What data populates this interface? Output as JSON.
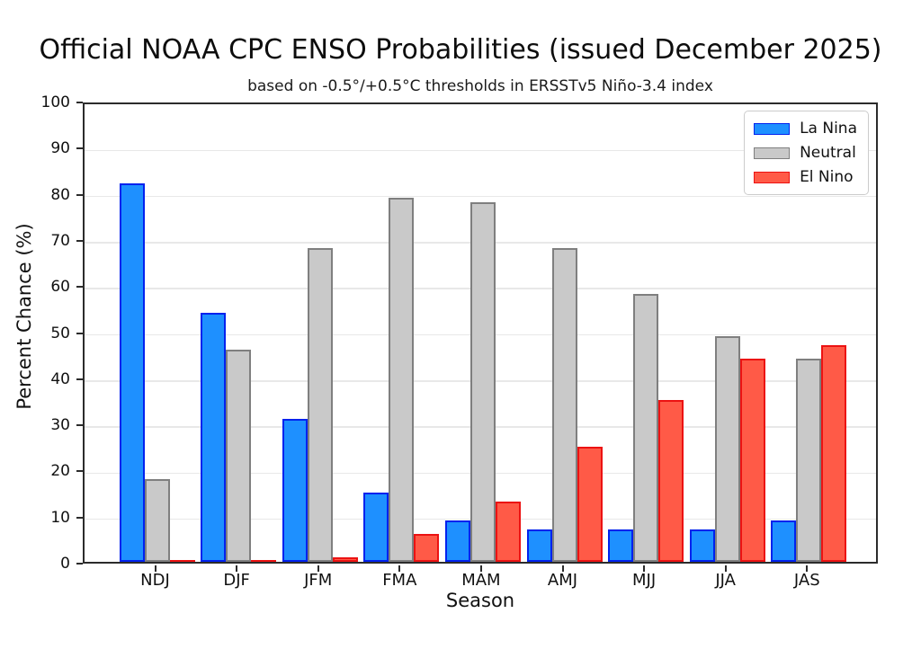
{
  "chart_data": {
    "type": "bar",
    "title": "Official NOAA CPC ENSO Probabilities (issued December 2025)",
    "subtitle": "based on -0.5°/+0.5°C thresholds in ERSSTv5 Niño-3.4 index",
    "xlabel": "Season",
    "ylabel": "Percent Chance (%)",
    "categories": [
      "NDJ",
      "DJF",
      "JFM",
      "FMA",
      "MAM",
      "AMJ",
      "MJJ",
      "JJA",
      "JAS"
    ],
    "series": [
      {
        "name": "La Nina",
        "values": [
          82,
          54,
          31,
          15,
          9,
          7,
          7,
          7,
          9
        ],
        "fill": "#1E90FF",
        "edge": "#0022EE"
      },
      {
        "name": "Neutral",
        "values": [
          18,
          46,
          68,
          79,
          78,
          68,
          58,
          49,
          44
        ],
        "fill": "#C9C9C9",
        "edge": "#7F7F7F"
      },
      {
        "name": "El Nino",
        "values": [
          0,
          0,
          1,
          6,
          13,
          25,
          35,
          44,
          47
        ],
        "fill": "#FF5A47",
        "edge": "#EC1212"
      }
    ],
    "ylim": [
      0,
      100
    ],
    "yticks": [
      0,
      10,
      20,
      30,
      40,
      50,
      60,
      70,
      80,
      90,
      100
    ],
    "grid": "horizontal",
    "grid_color": "#E8E8E8",
    "legend_position": "upper right"
  }
}
